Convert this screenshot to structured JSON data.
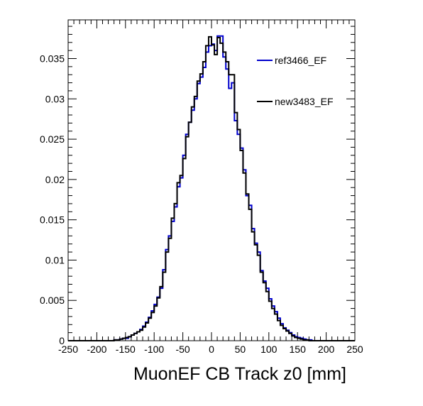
{
  "chart_data": {
    "type": "line",
    "title": "",
    "xlabel": "MuonEF CB Track z0 [mm]",
    "ylabel": "",
    "xlim": [
      -250,
      250
    ],
    "ylim": [
      0,
      0.0398
    ],
    "x_ticks": [
      -250,
      -200,
      -150,
      -100,
      -50,
      0,
      50,
      100,
      150,
      200,
      250
    ],
    "y_ticks": [
      0,
      0.005,
      0.01,
      0.015,
      0.02,
      0.025,
      0.03,
      0.035
    ],
    "x_tick_labels": [
      "-250",
      "-200",
      "-150",
      "-100",
      "-50",
      "0",
      "50",
      "100",
      "150",
      "200",
      "250"
    ],
    "y_tick_labels": [
      "0",
      "0.005",
      "0.01",
      "0.015",
      "0.02",
      "0.025",
      "0.03",
      "0.035"
    ],
    "grid": false,
    "legend_position": "top-right",
    "bin_edges_start": -250,
    "bin_width": 5,
    "series": [
      {
        "name": "ref3466_EF",
        "color": "#0000cc",
        "values": [
          0,
          0,
          0,
          0,
          0,
          0,
          0,
          0,
          0,
          0,
          0,
          0,
          0,
          0,
          0,
          0,
          0.0001,
          0.0001,
          0.0002,
          0.0003,
          0.0003,
          0.0005,
          0.0007,
          0.0009,
          0.0011,
          0.0014,
          0.0018,
          0.0023,
          0.0029,
          0.0037,
          0.0045,
          0.0054,
          0.0065,
          0.0088,
          0.0113,
          0.013,
          0.0148,
          0.0166,
          0.0191,
          0.0202,
          0.023,
          0.0256,
          0.0271,
          0.0286,
          0.03,
          0.0319,
          0.0327,
          0.0339,
          0.0358,
          0.0366,
          0.0368,
          0.036,
          0.0378,
          0.0378,
          0.0352,
          0.0337,
          0.0313,
          0.032,
          0.0273,
          0.0256,
          0.0239,
          0.0212,
          0.018,
          0.0168,
          0.0139,
          0.0121,
          0.011,
          0.0087,
          0.0074,
          0.0065,
          0.0052,
          0.0043,
          0.0036,
          0.0028,
          0.0021,
          0.0016,
          0.0013,
          0.001,
          0.0007,
          0.0005,
          0.0004,
          0.0003,
          0.0002,
          0.0001,
          0.0001,
          0,
          0,
          0,
          0,
          0,
          0,
          0,
          0,
          0,
          0,
          0,
          0,
          0,
          0,
          0
        ]
      },
      {
        "name": "new3483_EF",
        "color": "#000000",
        "values": [
          0,
          0,
          0,
          0,
          0,
          0,
          0,
          0,
          0,
          0,
          0,
          0,
          0,
          0,
          0,
          0,
          0.0001,
          0.0001,
          0.0002,
          0.0003,
          0.0004,
          0.0005,
          0.0007,
          0.0009,
          0.0011,
          0.0013,
          0.0017,
          0.0022,
          0.0028,
          0.0035,
          0.0043,
          0.0053,
          0.0067,
          0.0085,
          0.011,
          0.0127,
          0.0152,
          0.017,
          0.0196,
          0.0205,
          0.0226,
          0.0253,
          0.0271,
          0.029,
          0.0303,
          0.0322,
          0.0331,
          0.0346,
          0.0366,
          0.0377,
          0.0367,
          0.0355,
          0.0376,
          0.0369,
          0.0358,
          0.0346,
          0.033,
          0.033,
          0.0283,
          0.0262,
          0.0236,
          0.0208,
          0.0182,
          0.0163,
          0.0135,
          0.0119,
          0.0106,
          0.0085,
          0.0072,
          0.0061,
          0.0049,
          0.004,
          0.0033,
          0.0025,
          0.0019,
          0.0015,
          0.0012,
          0.0009,
          0.0006,
          0.0004,
          0.0003,
          0.0002,
          0.0001,
          0.0001,
          0,
          0,
          0,
          0,
          0,
          0,
          0,
          0,
          0,
          0,
          0,
          0,
          0,
          0,
          0,
          0
        ]
      }
    ]
  }
}
